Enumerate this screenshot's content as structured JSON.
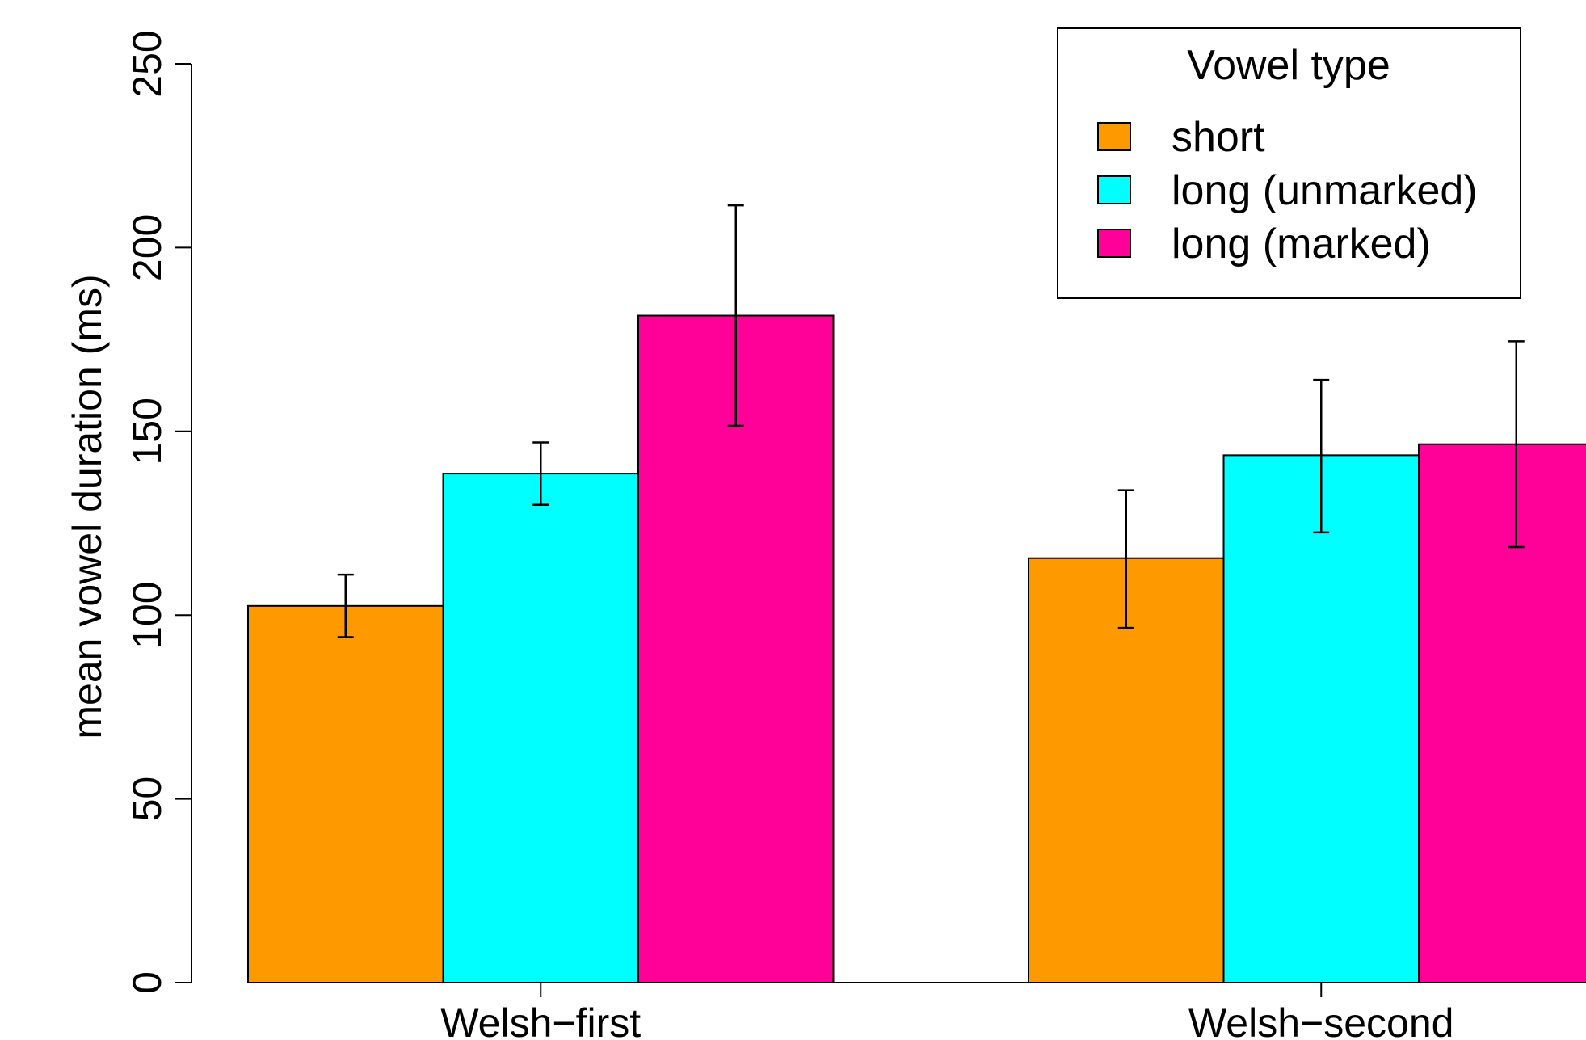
{
  "chart_data": {
    "type": "bar",
    "categories": [
      "Welsh−first",
      "Welsh−second"
    ],
    "ylabel": "mean vowel duration (ms)",
    "ylim": [
      0,
      250
    ],
    "yticks": [
      "0",
      "50",
      "100",
      "150",
      "200",
      "250"
    ],
    "grid": false,
    "legend": {
      "title": "Vowel type",
      "placement": "top-right"
    },
    "series": [
      {
        "name": "short",
        "color": "#FF9900",
        "values": [
          102.5,
          115.5
        ],
        "error_low": [
          94,
          96.5
        ],
        "error_high": [
          111,
          134
        ]
      },
      {
        "name": "long (unmarked)",
        "color": "#00FFFF",
        "values": [
          138.5,
          143.5
        ],
        "error_low": [
          130,
          122.5
        ],
        "error_high": [
          147,
          164
        ]
      },
      {
        "name": "long (marked)",
        "color": "#FF0099",
        "values": [
          181.5,
          146.5
        ],
        "error_low": [
          151.5,
          118.5
        ],
        "error_high": [
          211.5,
          174.5
        ]
      }
    ]
  }
}
